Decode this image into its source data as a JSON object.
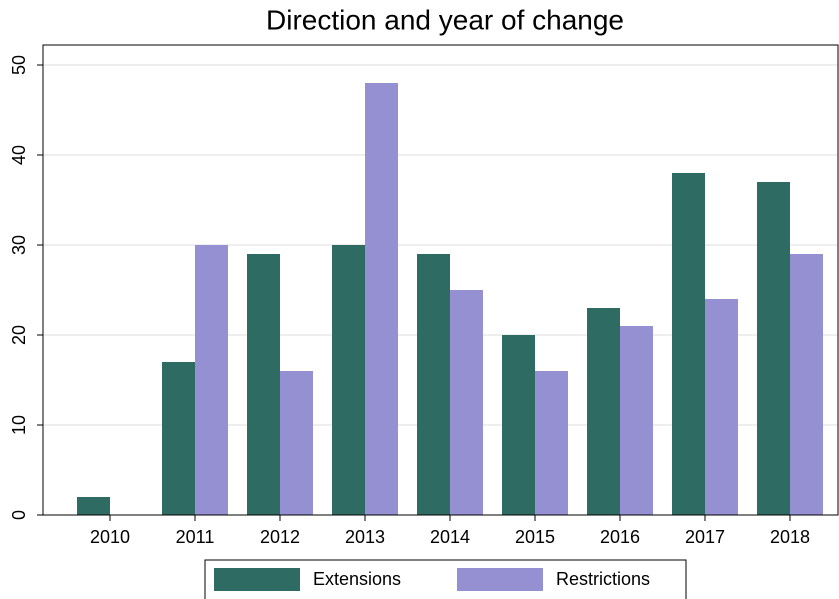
{
  "chart_data": {
    "type": "bar",
    "title": "Direction and year of change",
    "categories": [
      "2010",
      "2011",
      "2012",
      "2013",
      "2014",
      "2015",
      "2016",
      "2017",
      "2018"
    ],
    "series": [
      {
        "name": "Extensions",
        "color": "#2e6b62",
        "values": [
          2,
          17,
          29,
          30,
          29,
          20,
          23,
          38,
          37
        ]
      },
      {
        "name": "Restrictions",
        "color": "#9590d2",
        "values": [
          0,
          30,
          16,
          48,
          25,
          16,
          21,
          24,
          29
        ]
      }
    ],
    "ylim": [
      0,
      50
    ],
    "yticks": [
      0,
      10,
      20,
      30,
      40,
      50
    ],
    "grid": true
  }
}
